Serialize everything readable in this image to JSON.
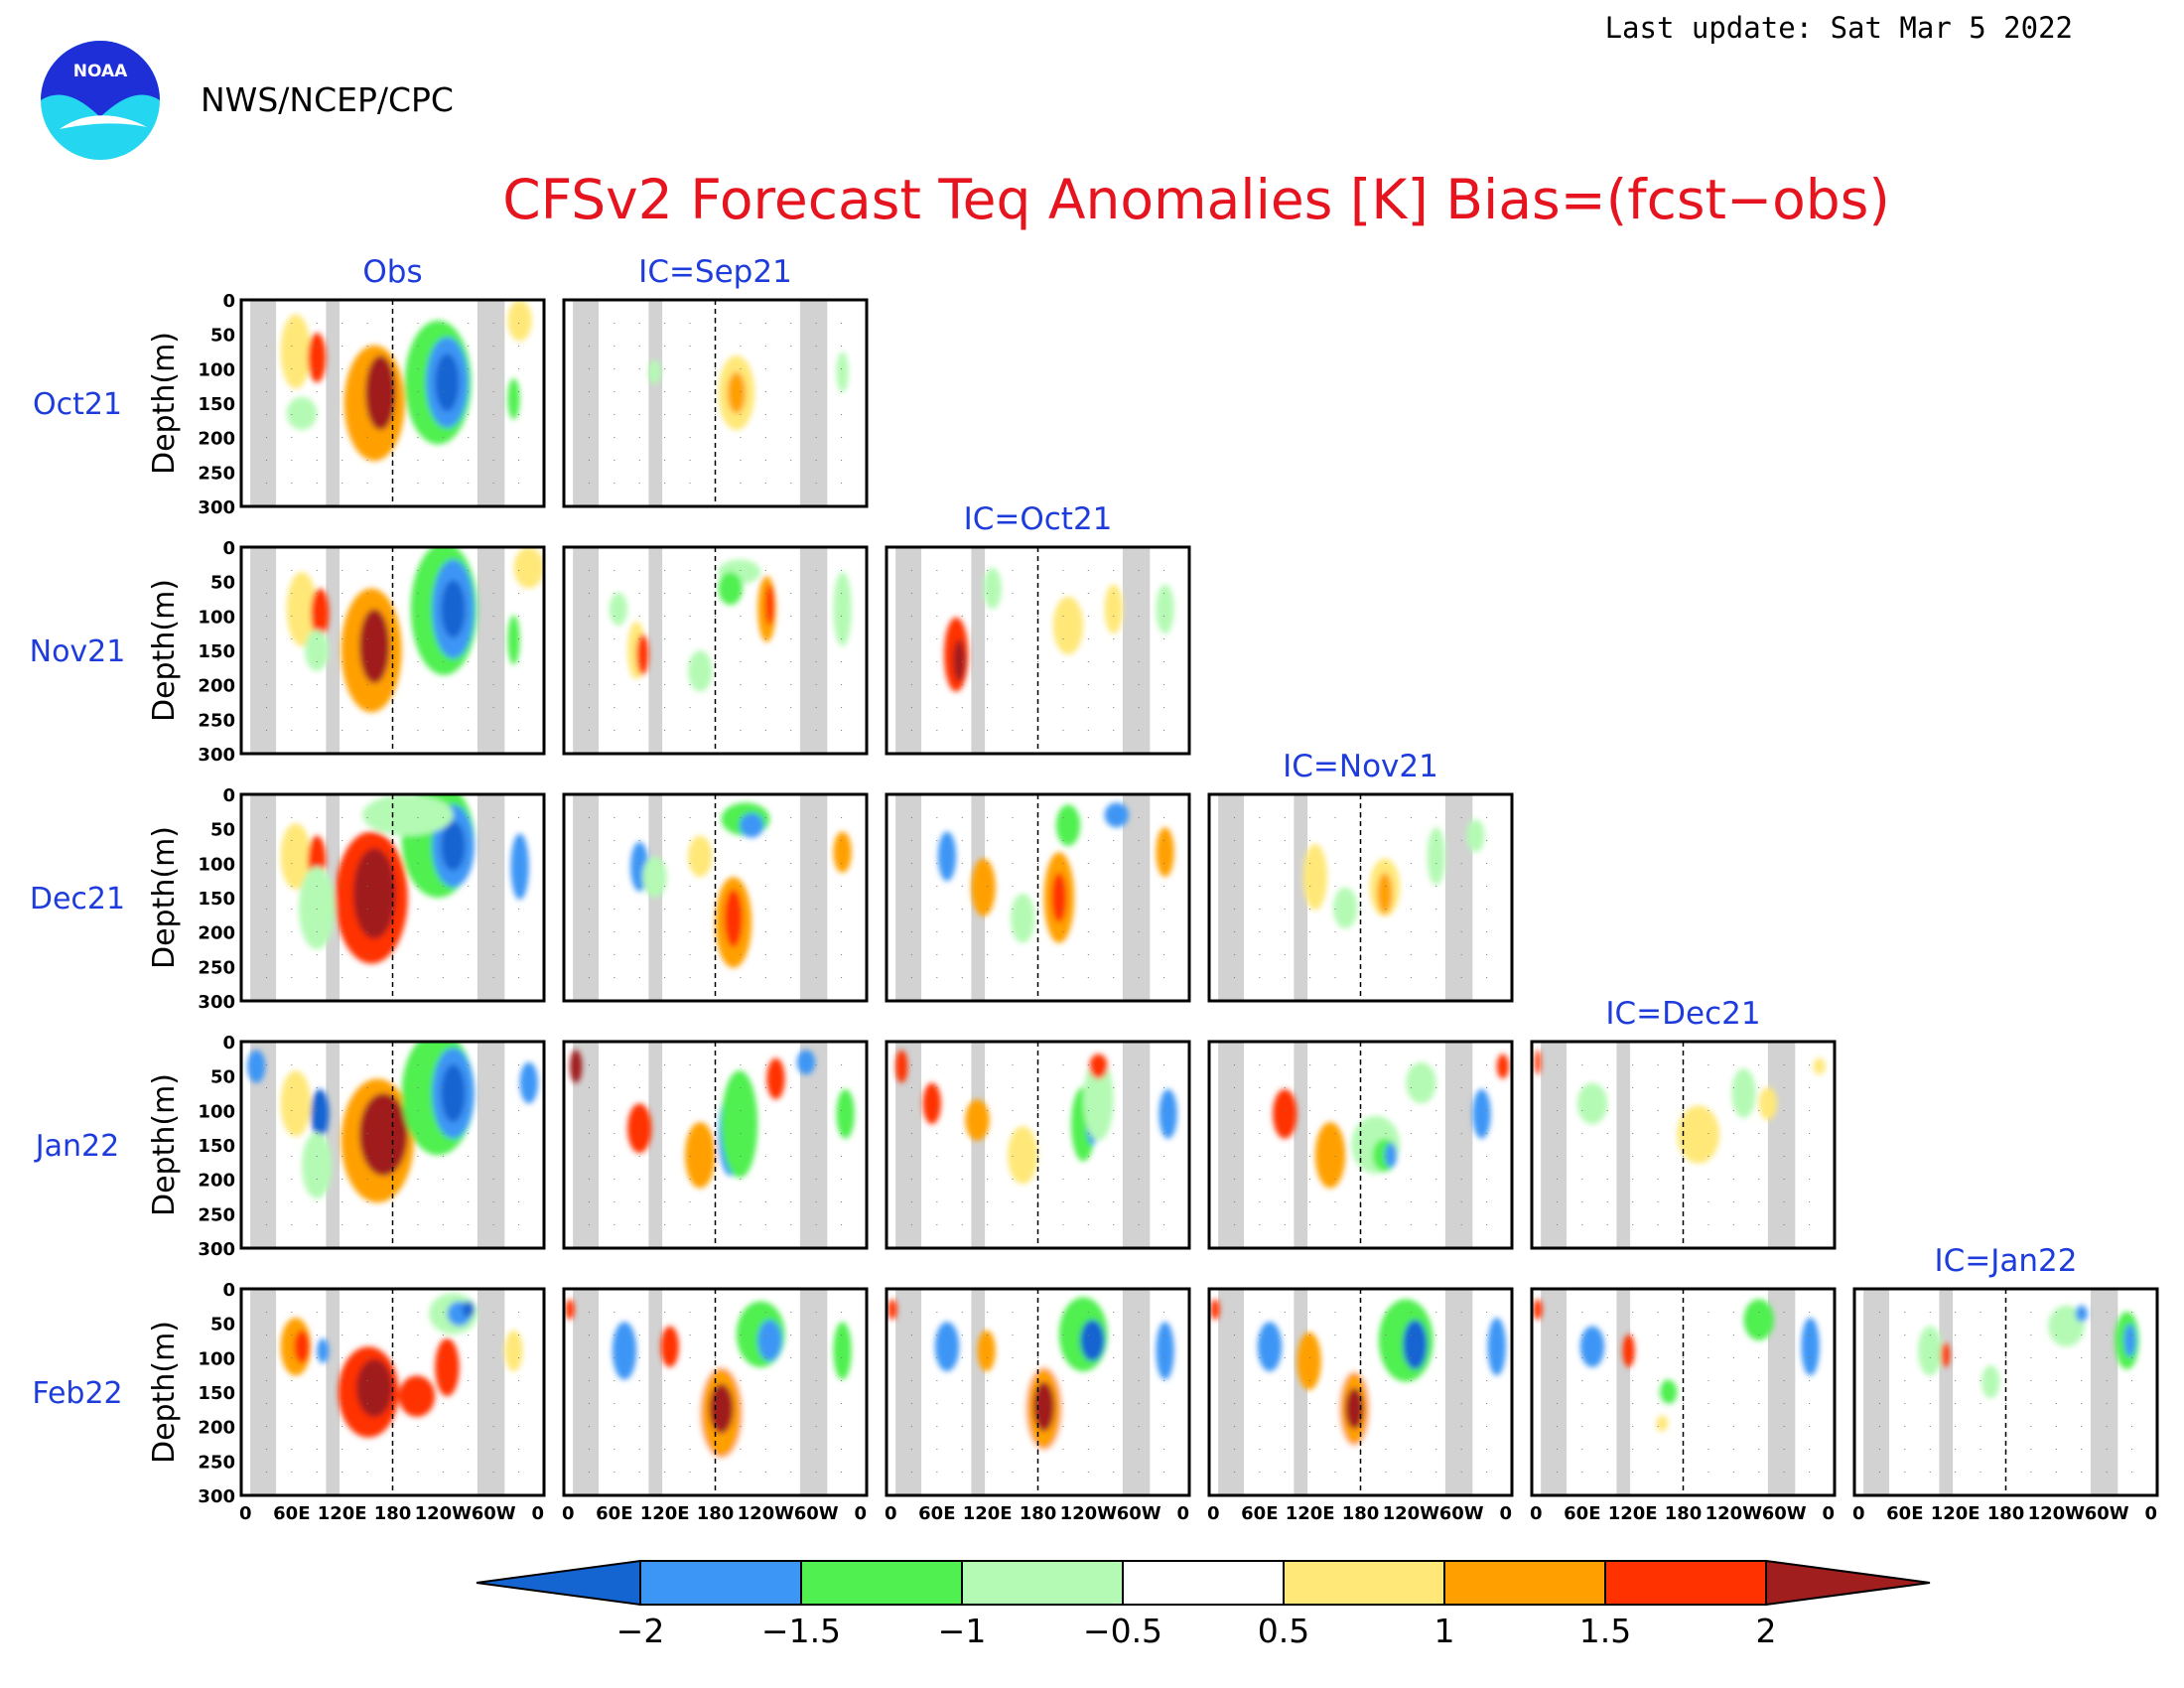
{
  "header": {
    "agency": "NWS/NCEP/CPC",
    "logo_text": "NOAA",
    "last_update": "Last update: Sat Mar  5 2022"
  },
  "chart_data": {
    "type": "heatmap",
    "title": "CFSv2 Forecast Teq Anomalies [K] Bias=(fcst−obs)",
    "ylabel": "Depth(m)",
    "y_ticks": [
      "0",
      "50",
      "100",
      "150",
      "200",
      "250",
      "300"
    ],
    "x_ticks": [
      "0",
      "60E",
      "120E",
      "180",
      "120W",
      "60W",
      "0"
    ],
    "column_titles": [
      "Obs",
      "IC=Sep21",
      "IC=Oct21",
      "IC=Nov21",
      "IC=Dec21",
      "IC=Jan22"
    ],
    "row_labels": [
      "Oct21",
      "Nov21",
      "Dec21",
      "Jan22",
      "Feb22"
    ],
    "colorbar": {
      "labels": [
        "−2",
        "−1.5",
        "−1",
        "−0.5",
        "0.5",
        "1",
        "1.5",
        "2"
      ],
      "colors": [
        "#1464d2",
        "#3c96f5",
        "#50f050",
        "#b4fab4",
        "#ffffff",
        "#ffe878",
        "#ffa000",
        "#ff3200",
        "#a01e1e"
      ]
    },
    "land_mask_color": "#d2d2d2"
  }
}
